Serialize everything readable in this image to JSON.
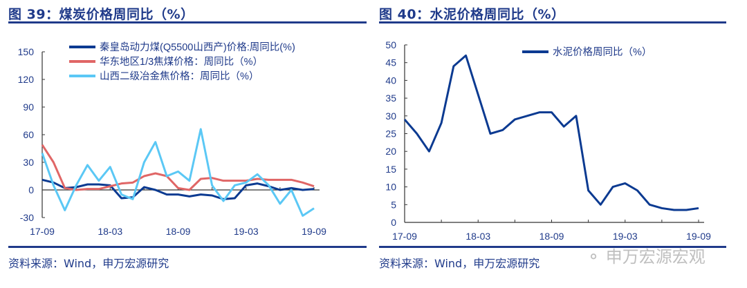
{
  "left": {
    "title": "图 39：煤炭价格周同比（%）",
    "source": "资料来源：Wind，申万宏源研究"
  },
  "right": {
    "title": "图 40：水泥价格周同比（%）",
    "source": "资料来源：Wind，申万宏源研究"
  },
  "watermark": "申万宏源宏观",
  "colors": {
    "accent": "#1f3a8a",
    "series_dark": "#0b3a91",
    "series_red": "#e06666",
    "series_cyan": "#5bc8f5",
    "axis": "#333333"
  },
  "chart_data": [
    {
      "type": "line",
      "title": "图 39：煤炭价格周同比（%）",
      "xlabel": "",
      "ylabel": "",
      "ylim": [
        -30,
        150
      ],
      "yticks": [
        -30,
        0,
        30,
        60,
        90,
        120,
        150
      ],
      "xticks": [
        "17-09",
        "18-03",
        "18-09",
        "19-03",
        "19-09"
      ],
      "legend_position": "top",
      "x": [
        "17-09",
        "17-10",
        "17-11",
        "17-12",
        "18-01",
        "18-02",
        "18-03",
        "18-04",
        "18-05",
        "18-06",
        "18-07",
        "18-08",
        "18-09",
        "18-10",
        "18-11",
        "18-12",
        "19-01",
        "19-02",
        "19-03",
        "19-04",
        "19-05",
        "19-06",
        "19-07",
        "19-08",
        "19-09"
      ],
      "series": [
        {
          "name": "秦皇岛动力煤(Q5500山西产)价格:周同比(%)",
          "color": "#0b3a91",
          "values": [
            11,
            8,
            2,
            3,
            6,
            6,
            5,
            -9,
            -8,
            3,
            0,
            -5,
            -5,
            -7,
            -5,
            -6,
            -10,
            -9,
            5,
            7,
            4,
            0,
            2,
            0,
            1
          ]
        },
        {
          "name": "华东地区1/3焦煤价格：周同比（%）",
          "color": "#e06666",
          "values": [
            49,
            30,
            2,
            0,
            1,
            1,
            4,
            7,
            8,
            15,
            18,
            15,
            2,
            0,
            12,
            13,
            10,
            10,
            10,
            12,
            11,
            11,
            11,
            8,
            4
          ]
        },
        {
          "name": "山西二级冶金焦价格：周同比（%）",
          "color": "#5bc8f5",
          "values": [
            40,
            5,
            -22,
            5,
            27,
            10,
            25,
            -5,
            -10,
            30,
            52,
            15,
            20,
            10,
            66,
            5,
            -12,
            5,
            8,
            17,
            5,
            -15,
            0,
            -28,
            -20
          ]
        }
      ]
    },
    {
      "type": "line",
      "title": "图 40：水泥价格周同比（%）",
      "xlabel": "",
      "ylabel": "",
      "ylim": [
        0,
        50
      ],
      "yticks": [
        0,
        5,
        10,
        15,
        20,
        25,
        30,
        35,
        40,
        45,
        50
      ],
      "xticks": [
        "17-09",
        "18-03",
        "18-09",
        "19-03",
        "19-09"
      ],
      "legend_position": "top-right",
      "series": [
        {
          "name": "水泥价格周同比（%）",
          "color": "#0b3a91",
          "x": [
            "17-09",
            "17-10",
            "17-11",
            "17-12",
            "18-01",
            "18-02",
            "18-03",
            "18-04",
            "18-05",
            "18-06",
            "18-07",
            "18-08",
            "18-09",
            "18-10",
            "18-11",
            "18-12",
            "19-01",
            "19-02",
            "19-03",
            "19-04",
            "19-05",
            "19-06",
            "19-07",
            "19-08",
            "19-09"
          ],
          "values": [
            29,
            25,
            20,
            28,
            44,
            47,
            36,
            25,
            26,
            29,
            30,
            31,
            31,
            27,
            30,
            9,
            5,
            10,
            11,
            9,
            5,
            4,
            3.5,
            3.5,
            4
          ]
        }
      ]
    }
  ]
}
